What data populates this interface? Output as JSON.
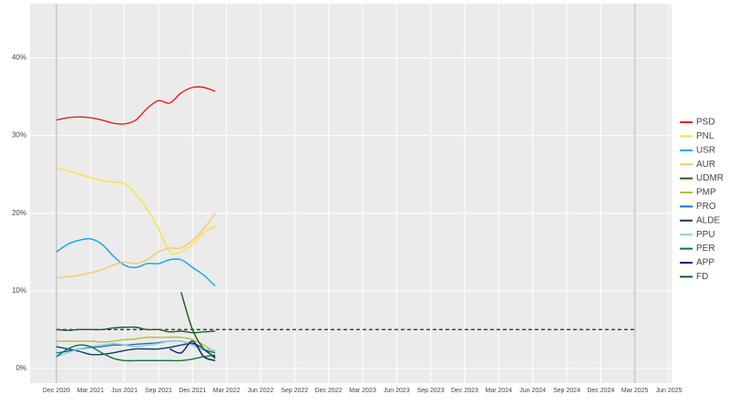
{
  "chart_data": {
    "type": "line",
    "x": [
      "Dec 2020",
      "Jan 2021",
      "Feb 2021",
      "Mar 2021",
      "Apr 2021",
      "May 2021",
      "Jun 2021",
      "Jul 2021",
      "Aug 2021",
      "Sep 2021",
      "Oct 2021",
      "Nov 2021",
      "Dec 2021",
      "Jan 2022",
      "Feb 2022"
    ],
    "series": [
      {
        "name": "PSD",
        "color": "#e8211b",
        "values": [
          32,
          32.3,
          32.4,
          32.3,
          32,
          31.6,
          31.5,
          32,
          33.5,
          34.5,
          34.2,
          35.5,
          36.2,
          36.2,
          35.7
        ]
      },
      {
        "name": "PNL",
        "color": "#ffe135",
        "values": [
          25.8,
          25.5,
          25,
          24.6,
          24.2,
          24,
          23.8,
          22.5,
          20.5,
          18,
          15,
          15,
          16,
          17.5,
          18.3
        ]
      },
      {
        "name": "USR",
        "color": "#0aa7e8",
        "values": [
          15,
          16,
          16.5,
          16.7,
          16,
          14.5,
          13.3,
          13,
          13.5,
          13.5,
          14,
          14,
          13,
          12,
          10.6
        ]
      },
      {
        "name": "AUR",
        "color": "#f9c56a",
        "values": [
          11.7,
          11.8,
          12,
          12.3,
          12.7,
          13.3,
          13.7,
          13.5,
          14,
          15,
          15.5,
          15.5,
          16.5,
          18,
          20
        ]
      },
      {
        "name": "UDMR",
        "color": "#1d5e2e",
        "values": [
          5,
          4.9,
          5,
          5,
          5,
          5.2,
          5.3,
          5.3,
          5,
          5,
          4.7,
          4.8,
          4.6,
          4.7,
          4.8
        ]
      },
      {
        "name": "PMP",
        "color": "#b8b83a",
        "values": [
          3.5,
          3.5,
          3.5,
          3.5,
          3.4,
          3.5,
          3.7,
          3.8,
          4,
          4,
          4,
          4,
          3.7,
          3,
          2
        ]
      },
      {
        "name": "PRO",
        "color": "#1a73b8",
        "values": [
          2,
          2.2,
          2.5,
          2.7,
          2.8,
          3,
          3,
          3.1,
          3.2,
          3.3,
          3.5,
          3.5,
          3,
          2.4,
          2
        ]
      },
      {
        "name": "ALDE",
        "color": "#0b3d6b",
        "values": [
          2.8,
          2.5,
          2.2,
          1.8,
          1.8,
          2,
          2.3,
          2.5,
          2.5,
          2.5,
          2.7,
          3,
          3.2,
          2.5,
          1.3
        ]
      },
      {
        "name": "PPU",
        "color": "#8ecbef",
        "values": [
          1.5,
          2,
          2.5,
          2.8,
          3,
          3.2,
          3,
          2.8,
          3,
          3.2,
          3.5,
          3.5,
          3,
          2.5,
          2.3
        ]
      },
      {
        "name": "PER",
        "color": "#0d7a3b",
        "values": [
          1.5,
          2.5,
          3,
          2.8,
          2,
          1.3,
          1,
          1,
          1,
          1,
          1,
          1,
          1.2,
          1.5,
          1.7
        ]
      },
      {
        "name": "APP",
        "color": "#0a1a7a",
        "values": [
          null,
          null,
          null,
          null,
          null,
          null,
          null,
          null,
          null,
          null,
          2.5,
          2,
          3.5,
          1.5,
          1
        ]
      },
      {
        "name": "FD",
        "color": "#0f5e0f",
        "values": [
          null,
          null,
          null,
          null,
          null,
          null,
          null,
          null,
          null,
          null,
          null,
          9.8,
          5,
          2.5,
          1.5
        ]
      }
    ],
    "xlim": [
      "Oct 2020",
      "Jun 2025"
    ],
    "xticks": [
      "Dec 2020",
      "Mar 2021",
      "Jun 2021",
      "Sep 2021",
      "Dec 2021",
      "Mar 2022",
      "Jun 2022",
      "Sep 2022",
      "Dec 2022",
      "Mar 2023",
      "Jun 2023",
      "Sep 2023",
      "Dec 2023",
      "Mar 2024",
      "Jun 2024",
      "Sep 2024",
      "Dec 2024",
      "Mar 2025",
      "Jun 2025"
    ],
    "ylim": [
      -1.9,
      47
    ],
    "yticks": [
      {
        "value": 0,
        "label": "0%"
      },
      {
        "value": 10,
        "label": "10%"
      },
      {
        "value": 20,
        "label": "20%"
      },
      {
        "value": 30,
        "label": "30%"
      },
      {
        "value": 40,
        "label": "40%"
      }
    ],
    "threshold": {
      "value": 5,
      "from": "Dec 2020",
      "to": "Mar 2025"
    },
    "vlines": [
      "Dec 2020",
      "Mar 2025"
    ],
    "grid": true,
    "legend": "right"
  }
}
